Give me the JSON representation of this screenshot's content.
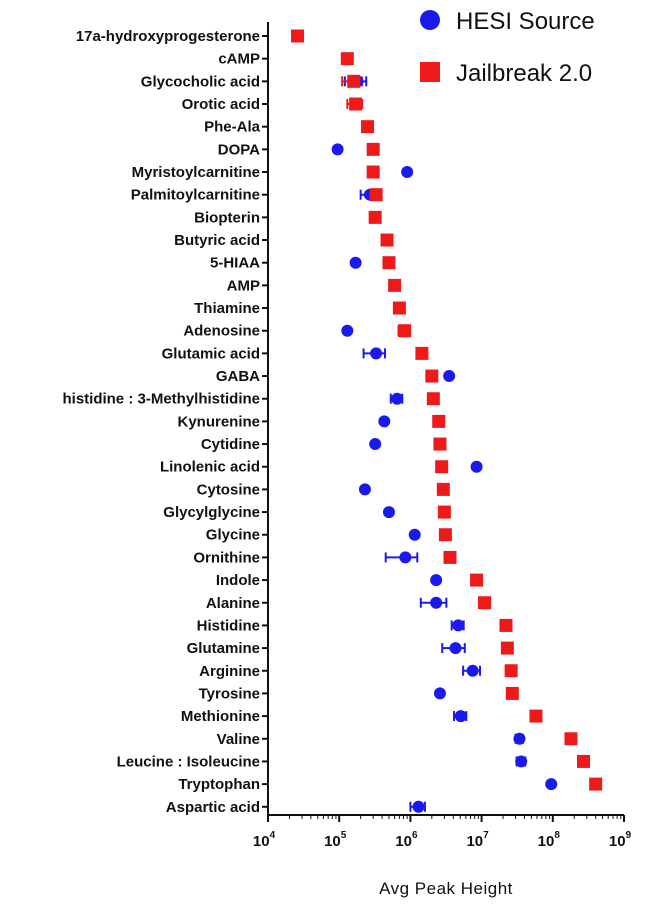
{
  "chart_data": {
    "type": "scatter",
    "xlabel": "Avg  Peak  Height",
    "xscale": "log",
    "xlim": [
      10000,
      1000000000
    ],
    "xticks": [
      {
        "base": "10",
        "exp": "4"
      },
      {
        "base": "10",
        "exp": "5"
      },
      {
        "base": "10",
        "exp": "6"
      },
      {
        "base": "10",
        "exp": "7"
      },
      {
        "base": "10",
        "exp": "8"
      },
      {
        "base": "10",
        "exp": "9"
      }
    ],
    "legend_position": "top-right",
    "grid": false,
    "categories": [
      "17a-hydroxyprogesterone",
      "cAMP",
      "Glycocholic acid",
      "Orotic acid",
      "Phe-Ala",
      "DOPA",
      "Myristoylcarnitine",
      "Palmitoylcarnitine",
      "Biopterin",
      "Butyric acid",
      "5-HIAA",
      "AMP",
      "Thiamine",
      "Adenosine",
      "Glutamic acid",
      "GABA",
      "histidine : 3-Methylhistidine",
      "Kynurenine",
      "Cytidine",
      "Linolenic acid",
      "Cytosine",
      "Glycylglycine",
      "Glycine",
      "Ornithine",
      "Indole",
      "Alanine",
      "Histidine",
      "Glutamine",
      "Arginine",
      "Tyrosine",
      "Methionine",
      "Valine",
      "Leucine : Isoleucine",
      "Tryptophan",
      "Aspartic acid"
    ],
    "series": [
      {
        "name": "HESI Source",
        "color": "#1a1aee",
        "marker": "circle",
        "values": [
          null,
          null,
          180000,
          null,
          null,
          95000,
          900000,
          270000,
          null,
          null,
          170000,
          null,
          null,
          130000,
          330000,
          3500000,
          650000,
          430000,
          320000,
          8500000,
          230000,
          500000,
          1150000,
          850000,
          2300000,
          2300000,
          4700000,
          4300000,
          7500000,
          2600000,
          5100000,
          34000000,
          36000000,
          95000000,
          1300000
        ],
        "err": [
          null,
          null,
          60000,
          null,
          null,
          null,
          null,
          70000,
          null,
          null,
          null,
          null,
          null,
          null,
          110000,
          null,
          120000,
          null,
          null,
          null,
          null,
          null,
          null,
          400000,
          null,
          900000,
          900000,
          1500000,
          2000000,
          null,
          1000000,
          4000000,
          5000000,
          null,
          300000
        ]
      },
      {
        "name": "Jailbreak 2.0",
        "color": "#ee1a1a",
        "marker": "square",
        "values": [
          26000,
          130000,
          160000,
          170000,
          250000,
          300000,
          300000,
          330000,
          320000,
          470000,
          500000,
          600000,
          700000,
          830000,
          1450000,
          2000000,
          2100000,
          2500000,
          2600000,
          2750000,
          2900000,
          3000000,
          3100000,
          3600000,
          8500000,
          11000000,
          22000000,
          23000000,
          26000000,
          27000000,
          58000000,
          180000000,
          270000000,
          400000000,
          null
        ],
        "err": [
          4000,
          15000,
          50000,
          40000,
          30000,
          null,
          40000,
          60000,
          null,
          null,
          null,
          null,
          null,
          150000,
          null,
          null,
          null,
          null,
          null,
          null,
          null,
          null,
          null,
          null,
          null,
          null,
          null,
          null,
          null,
          null,
          null,
          null,
          null,
          null,
          null
        ]
      }
    ]
  }
}
